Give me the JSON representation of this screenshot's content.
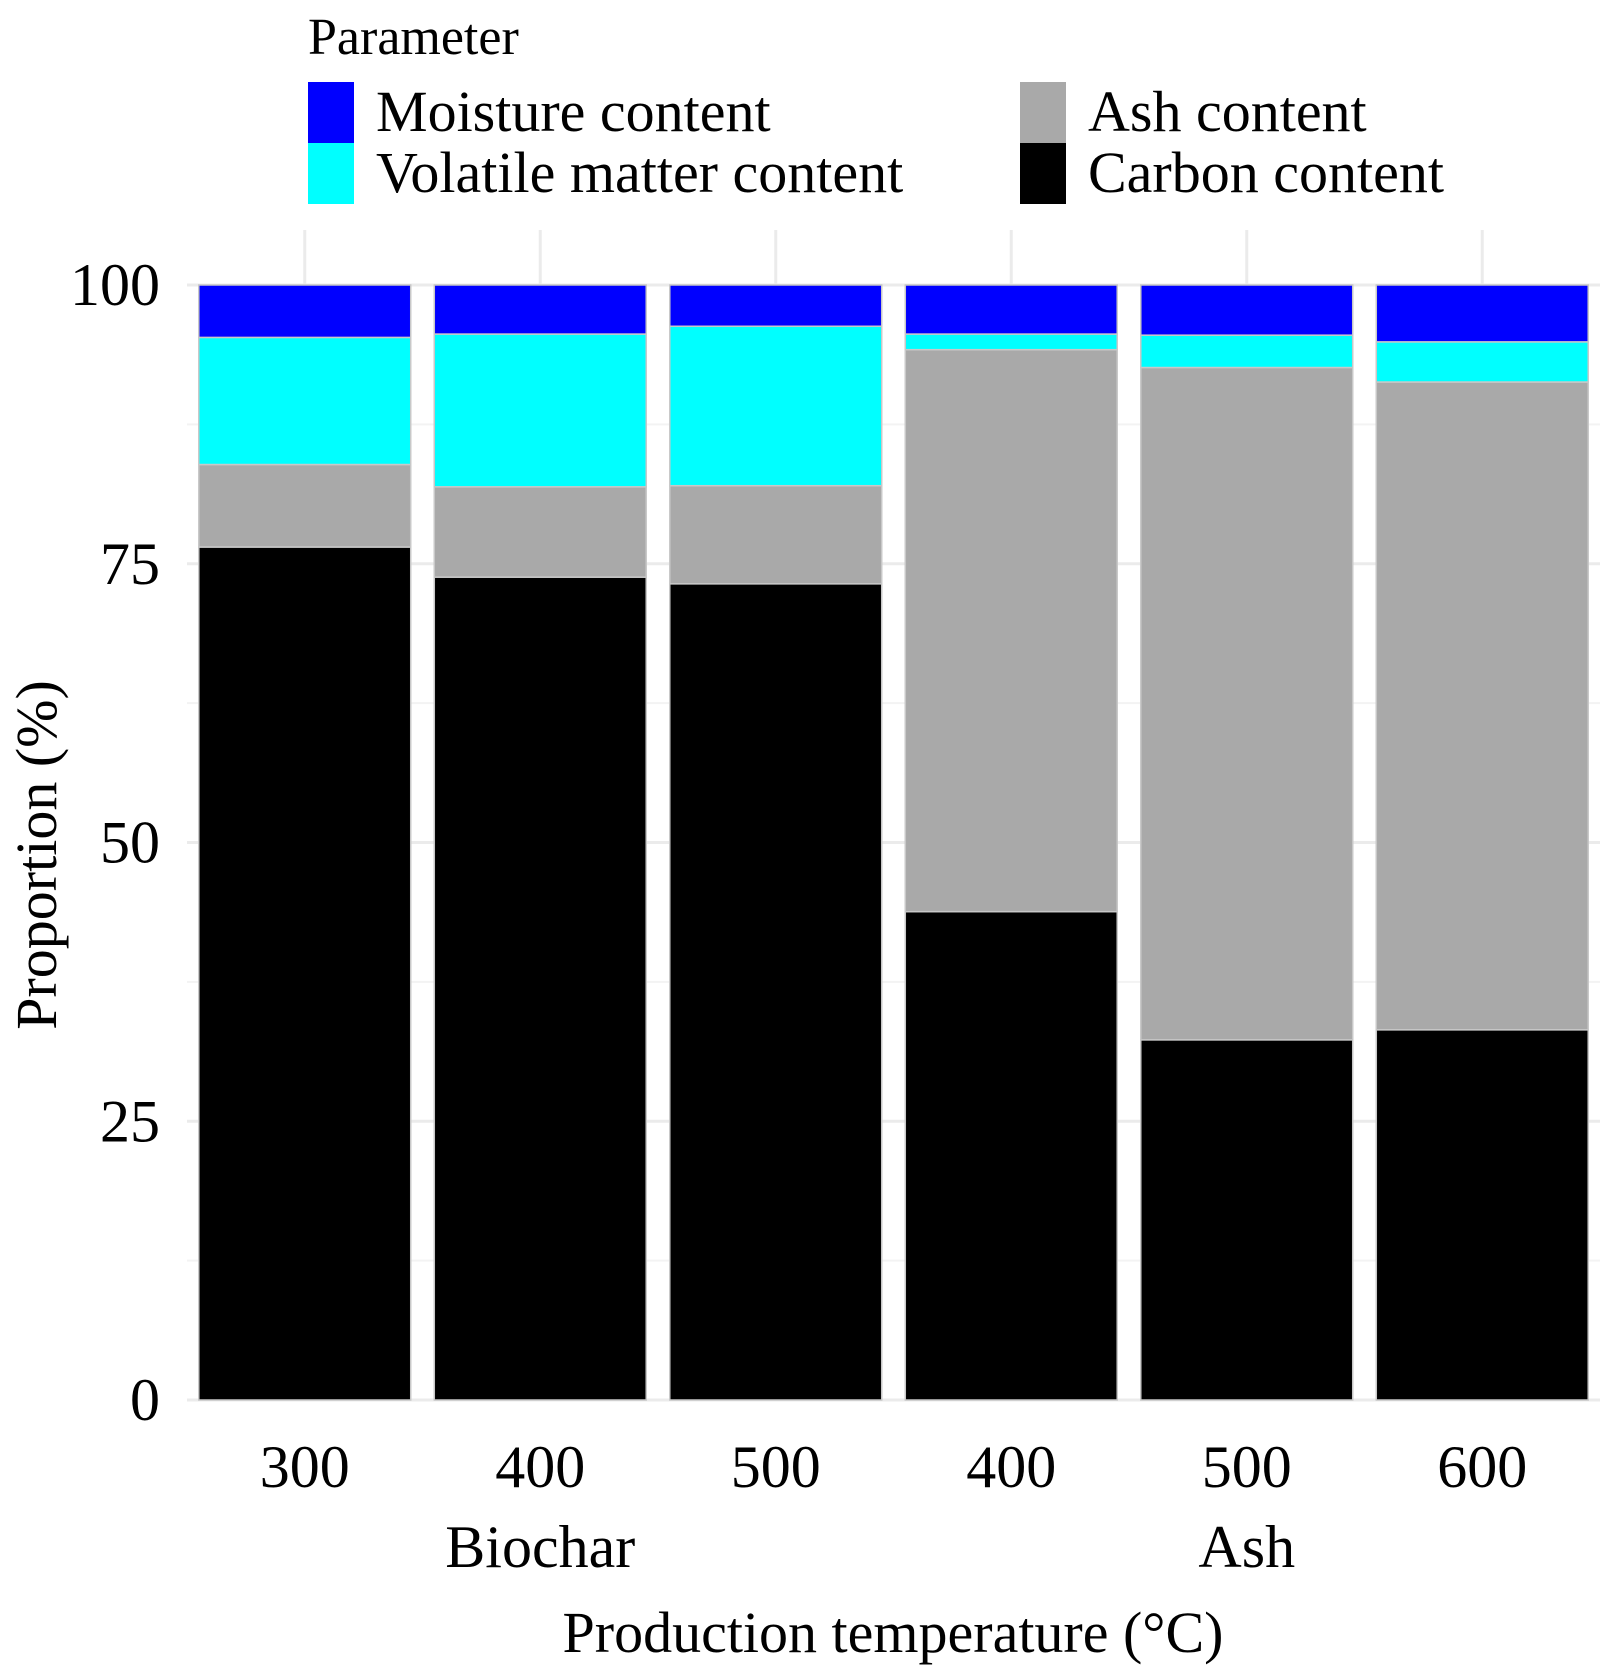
{
  "chart_data": {
    "type": "bar",
    "stacked": true,
    "legend": {
      "title": "Parameter",
      "placement": "top",
      "entries": [
        {
          "label": "Moisture content",
          "color": "#0000FF"
        },
        {
          "label": "Ash content",
          "color": "#A9A9A9"
        },
        {
          "label": "Volatile matter content",
          "color": "#00FFFF"
        },
        {
          "label": "Carbon content",
          "color": "#000000"
        }
      ]
    },
    "categories": [
      "300",
      "400",
      "500",
      "400",
      "500",
      "600"
    ],
    "groups": [
      {
        "label": "Biochar",
        "categories": [
          "300",
          "400",
          "500"
        ]
      },
      {
        "label": "Ash",
        "categories": [
          "400",
          "500",
          "600"
        ]
      }
    ],
    "series": [
      {
        "name": "Carbon content",
        "color": "#000000",
        "values": [
          76.5,
          73.8,
          73.2,
          43.8,
          32.3,
          33.2
        ]
      },
      {
        "name": "Ash content",
        "color": "#A9A9A9",
        "values": [
          7.4,
          8.1,
          8.8,
          50.4,
          60.3,
          58.1
        ]
      },
      {
        "name": "Volatile matter content",
        "color": "#00FFFF",
        "values": [
          11.4,
          13.7,
          14.3,
          1.4,
          2.9,
          3.6
        ]
      },
      {
        "name": "Moisture content",
        "color": "#0000FF",
        "values": [
          4.7,
          4.4,
          3.7,
          4.4,
          4.5,
          5.1
        ]
      }
    ],
    "xlabel": "Production temperature (°C)",
    "ylabel": "Proportion (%)",
    "ylim": [
      0,
      100
    ],
    "yticks": [
      0,
      25,
      50,
      75,
      100
    ],
    "grid": true
  }
}
